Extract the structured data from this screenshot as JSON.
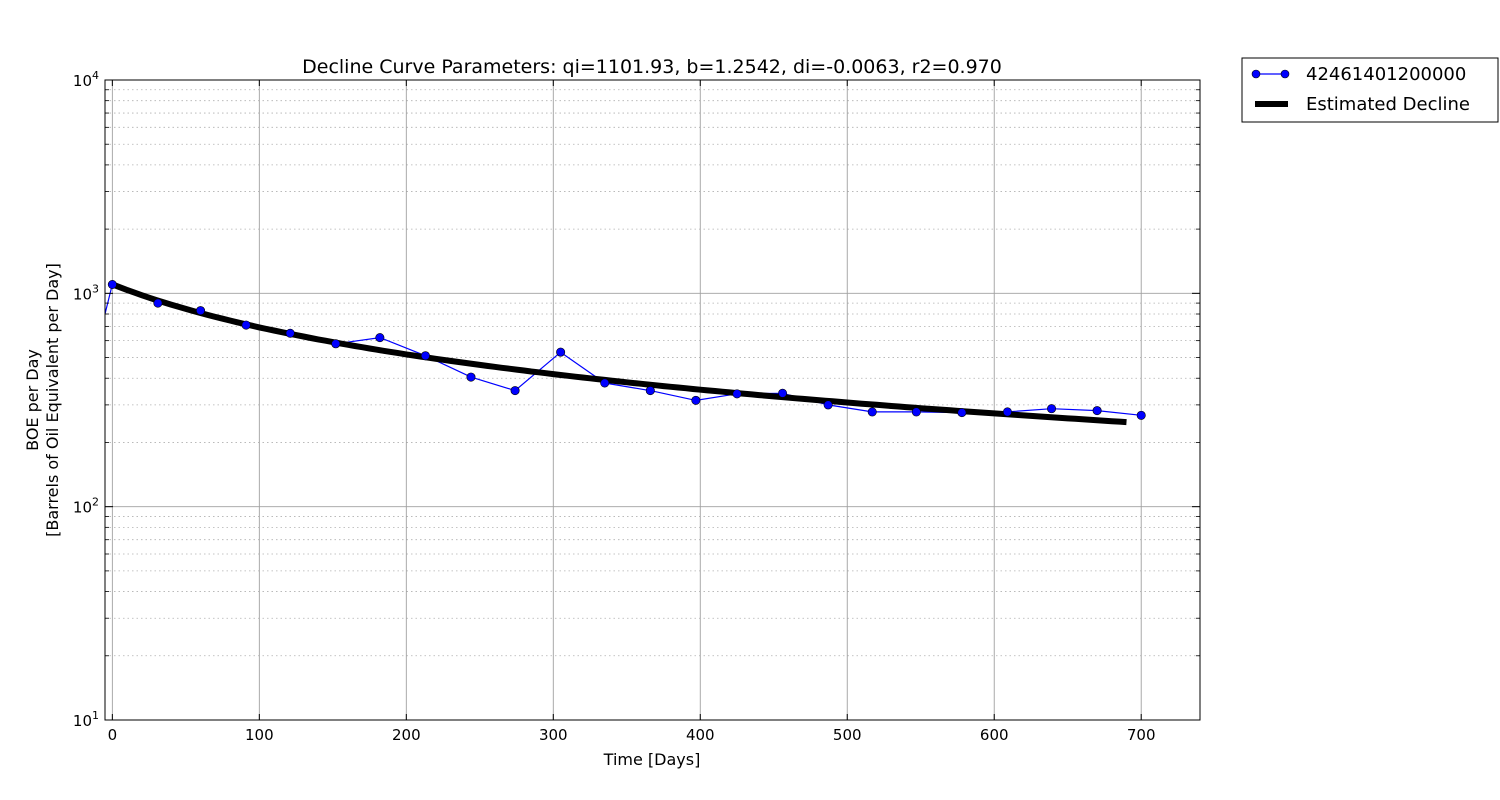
{
  "chart_data": {
    "type": "line",
    "title": "Decline Curve Parameters: qi=1101.93, b=1.2542, di=-0.0063, r2=0.970",
    "xlabel": "Time [Days]",
    "ylabel_line1": "BOE per Day",
    "ylabel_line2": "[Barrels of Oil Equivalent per Day]",
    "xlim": [
      -5,
      740
    ],
    "ylim": [
      10,
      10000
    ],
    "y_scale": "log",
    "x_ticks": [
      0,
      100,
      200,
      300,
      400,
      500,
      600,
      700
    ],
    "x_tick_labels": [
      "0",
      "100",
      "200",
      "300",
      "400",
      "500",
      "600",
      "700"
    ],
    "y_ticks": [
      10,
      100,
      1000,
      10000
    ],
    "y_tick_labels": [
      {
        "base": "10",
        "exp": "1"
      },
      {
        "base": "10",
        "exp": "2"
      },
      {
        "base": "10",
        "exp": "3"
      },
      {
        "base": "10",
        "exp": "4"
      }
    ],
    "grid": true,
    "legend_position": "outside-top-right",
    "series": [
      {
        "name": "42461401200000",
        "color": "#0000ff",
        "marker": "circle",
        "x": [
          -5,
          0,
          31,
          60,
          91,
          121,
          152,
          182,
          213,
          244,
          274,
          305,
          335,
          366,
          397,
          425,
          456,
          487,
          517,
          547,
          578,
          609,
          639,
          670,
          700
        ],
        "values": [
          800,
          1100,
          900,
          830,
          710,
          650,
          580,
          620,
          510,
          405,
          350,
          530,
          380,
          350,
          315,
          338,
          340,
          300,
          278,
          278,
          276,
          278,
          288,
          282,
          268
        ]
      },
      {
        "name": "Estimated Decline",
        "color": "#000000",
        "style": "thick-line",
        "qi": 1101.93,
        "b": 1.2542,
        "di": -0.0063,
        "x_range": [
          0,
          690
        ]
      }
    ]
  }
}
